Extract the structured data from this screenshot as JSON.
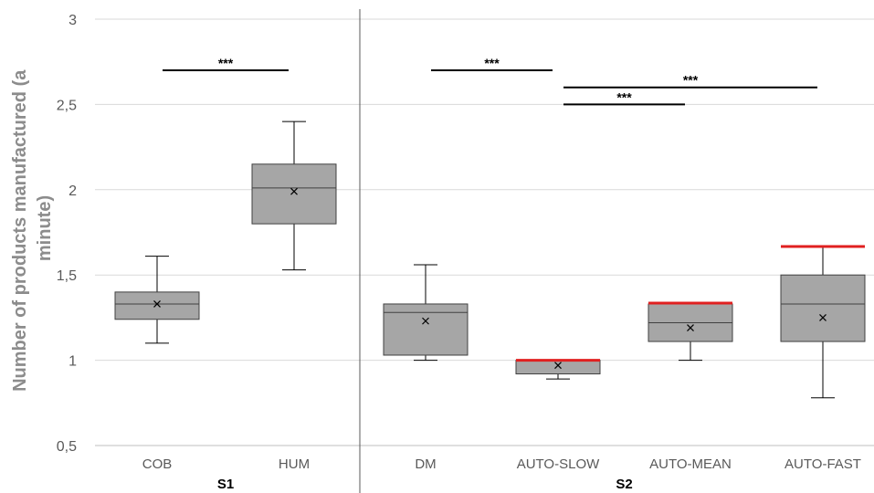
{
  "chart_data": {
    "type": "box",
    "ylabel_lines": [
      "Number of products manufactured (a",
      "minute)"
    ],
    "ylim": [
      0.5,
      3
    ],
    "yticks": [
      {
        "value": 0.5,
        "label": "0,5"
      },
      {
        "value": 1,
        "label": "1"
      },
      {
        "value": 1.5,
        "label": "1,5"
      },
      {
        "value": 2,
        "label": "2"
      },
      {
        "value": 2.5,
        "label": "2,5"
      },
      {
        "value": 3,
        "label": "3"
      }
    ],
    "grid": true,
    "colors": {
      "box": "#a6a6a6",
      "reference": "#e02020",
      "grid": "#d9d9d9"
    },
    "groups": [
      {
        "label": "S1",
        "categories": [
          0,
          1
        ]
      },
      {
        "label": "S2",
        "categories": [
          2,
          3,
          4,
          5
        ]
      }
    ],
    "boxes": [
      {
        "category": "COB",
        "min": 1.1,
        "q1": 1.24,
        "median": 1.33,
        "q3": 1.4,
        "max": 1.61,
        "mean": 1.33
      },
      {
        "category": "HUM",
        "min": 1.53,
        "q1": 1.8,
        "median": 2.01,
        "q3": 2.15,
        "max": 2.4,
        "mean": 1.99
      },
      {
        "category": "DM",
        "min": 1.0,
        "q1": 1.03,
        "median": 1.28,
        "q3": 1.33,
        "max": 1.56,
        "mean": 1.23
      },
      {
        "category": "AUTO-SLOW",
        "min": 0.89,
        "q1": 0.92,
        "median": 1.0,
        "q3": 1.0,
        "max": 1.0,
        "mean": 0.97,
        "reference": 1.0
      },
      {
        "category": "AUTO-MEAN",
        "min": 1.0,
        "q1": 1.11,
        "median": 1.22,
        "q3": 1.33,
        "max": 1.33,
        "mean": 1.19,
        "reference": 1.335
      },
      {
        "category": "AUTO-FAST",
        "min": 0.78,
        "q1": 1.11,
        "median": 1.33,
        "q3": 1.5,
        "max": 1.667,
        "mean": 1.25,
        "reference": 1.667
      }
    ],
    "significance": [
      {
        "from": "COB",
        "to": "HUM",
        "y": 2.7,
        "label": "***"
      },
      {
        "from": "DM",
        "to": "AUTO-SLOW",
        "y": 2.7,
        "label": "***"
      },
      {
        "from": "AUTO-SLOW",
        "to": "AUTO-FAST",
        "y": 2.6,
        "label": "***"
      },
      {
        "from": "AUTO-SLOW",
        "to": "AUTO-MEAN",
        "y": 2.5,
        "label": "***"
      }
    ]
  }
}
